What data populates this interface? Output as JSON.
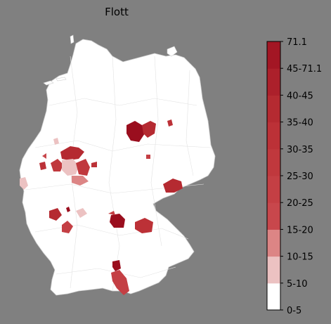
{
  "title": "Flott",
  "legend": {
    "bins": [
      {
        "label": "0-5",
        "color": "#ffffff"
      },
      {
        "label": "5-10",
        "color": "#ecc2c2"
      },
      {
        "label": "10-15",
        "color": "#dc8585"
      },
      {
        "label": "15-20",
        "color": "#c8474c"
      },
      {
        "label": "20-25",
        "color": "#c43f44"
      },
      {
        "label": "25-30",
        "color": "#c0383d"
      },
      {
        "label": "30-35",
        "color": "#bc3137"
      },
      {
        "label": "35-40",
        "color": "#b52a31"
      },
      {
        "label": "40-45",
        "color": "#ac202b"
      },
      {
        "label": "45-71.1",
        "color": "#a31624"
      },
      {
        "label": "71.1",
        "color": "#9a0e1e"
      }
    ]
  },
  "colors": {
    "background": "#808080",
    "map_fill": "#ffffff",
    "border": "#d0d0d0"
  }
}
